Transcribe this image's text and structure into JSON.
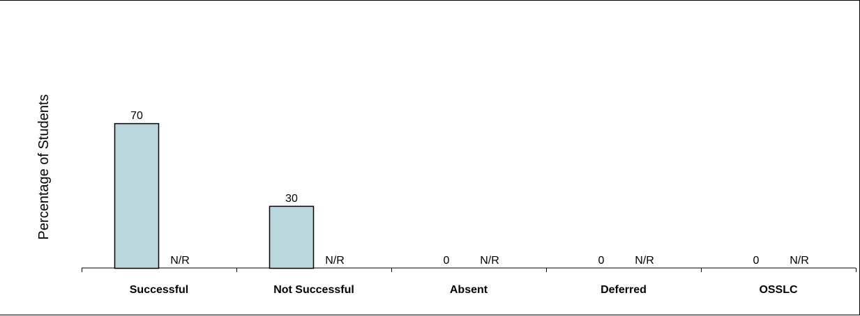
{
  "chart_data": {
    "type": "bar",
    "title": "",
    "xlabel": "",
    "ylabel": "Percentage of Students",
    "ylim": [
      0,
      100
    ],
    "grid": false,
    "legend": "none",
    "categories": [
      "Successful",
      "Not Successful",
      "Absent",
      "Deferred",
      "OSSLC"
    ],
    "series": [
      {
        "values": [
          70,
          30,
          0,
          0,
          0
        ],
        "labels": [
          "70",
          "30",
          "0",
          "0",
          "0"
        ],
        "color": "#b9d7dc"
      },
      {
        "values": [
          null,
          null,
          null,
          null,
          null
        ],
        "labels": [
          "N/R",
          "N/R",
          "N/R",
          "N/R",
          "N/R"
        ],
        "color": "#ffffff"
      }
    ]
  }
}
